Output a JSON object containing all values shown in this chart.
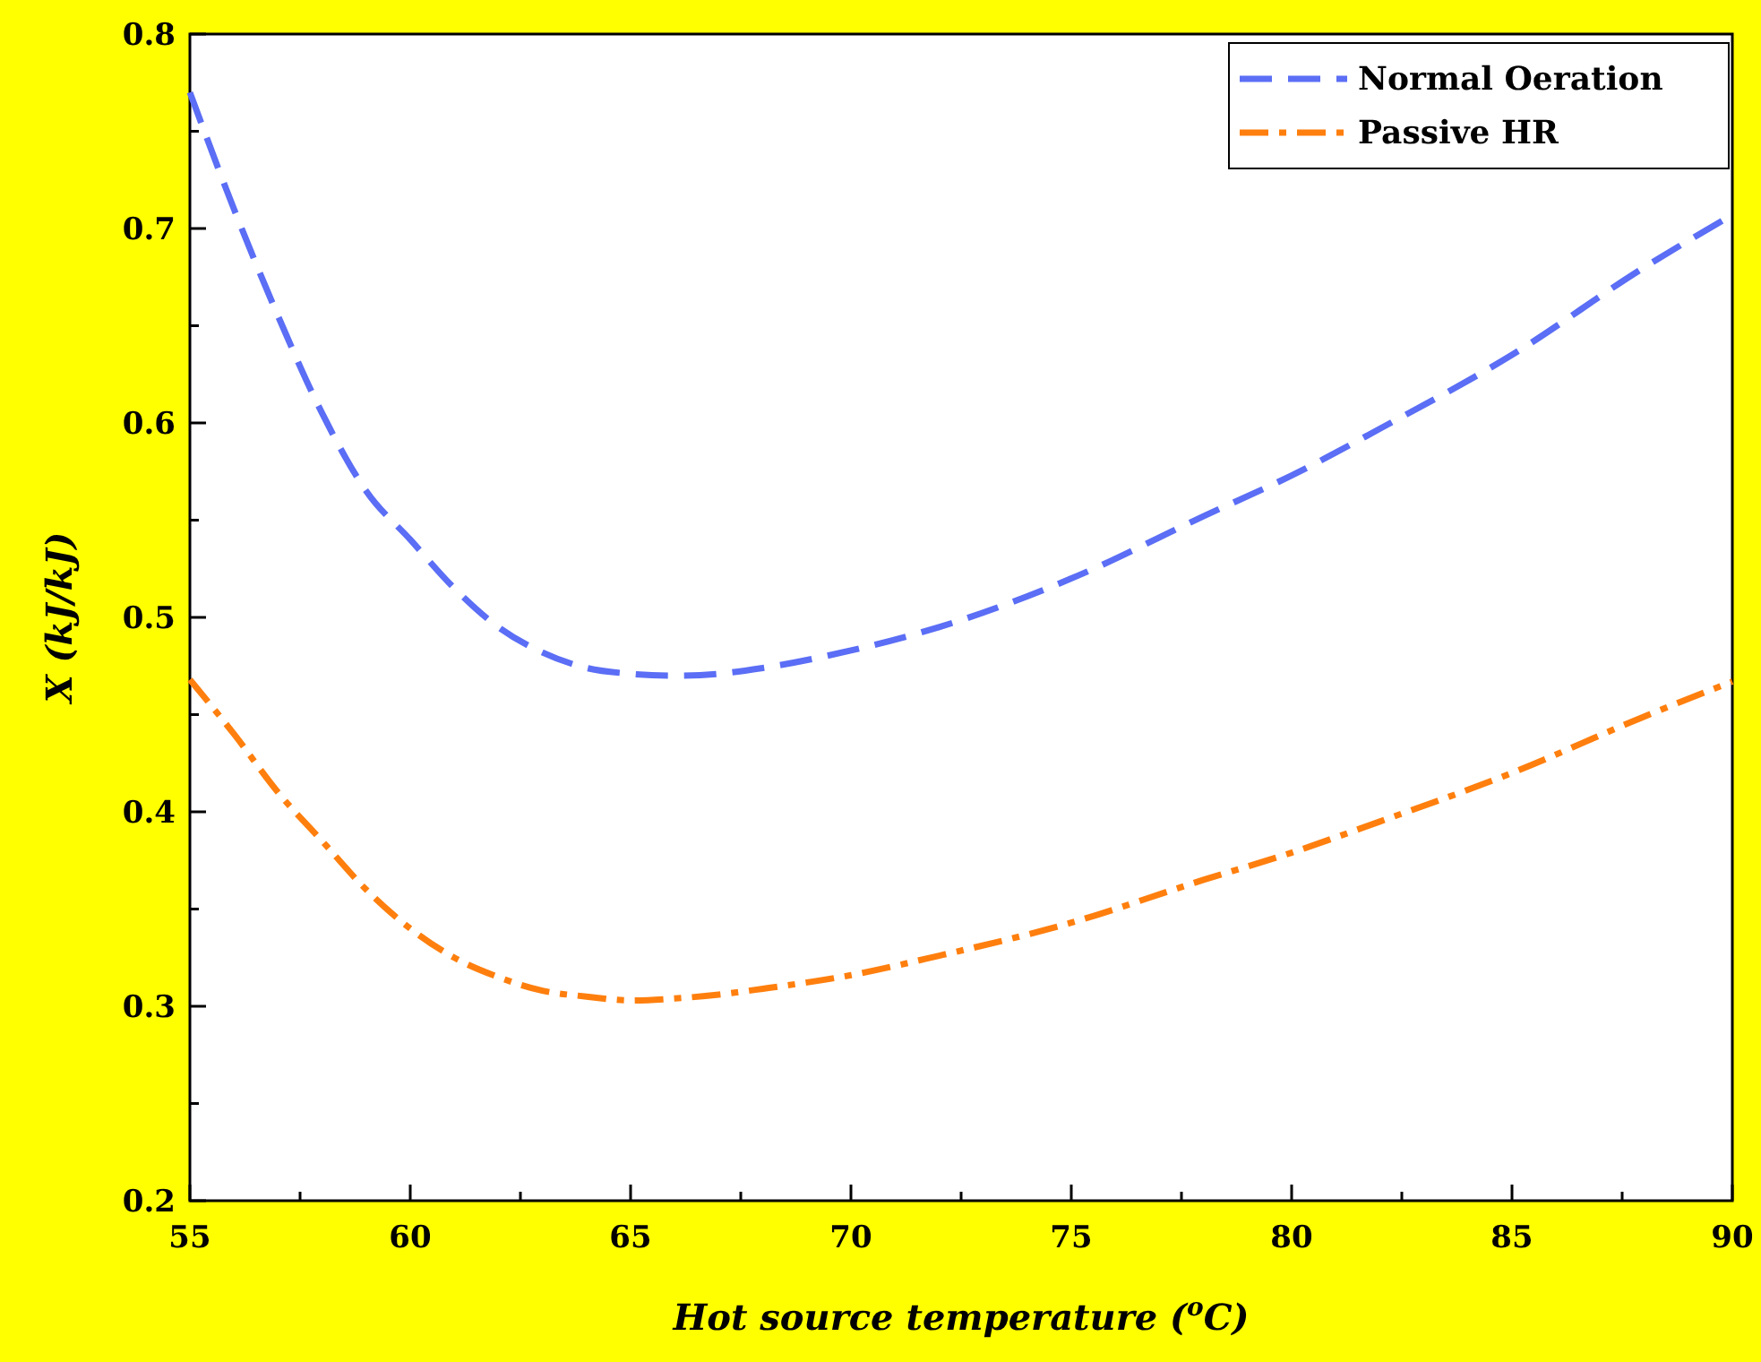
{
  "chart_data": {
    "type": "line",
    "xlabel": "Hot source temperature ($^{o}$C)",
    "ylabel": "X (kJ/kJ)",
    "x": [
      55,
      56,
      57,
      58,
      59,
      60,
      61,
      62,
      63,
      64,
      65,
      66,
      67,
      68,
      70,
      72,
      75,
      78,
      80,
      82,
      85,
      88,
      90
    ],
    "series": [
      {
        "name": "Normal Oeration",
        "color": "#5b6ef5",
        "line_style": "dashed",
        "values": [
          0.77,
          0.71,
          0.655,
          0.605,
          0.565,
          0.54,
          0.515,
          0.495,
          0.482,
          0.474,
          0.471,
          0.47,
          0.471,
          0.474,
          0.483,
          0.495,
          0.52,
          0.552,
          0.573,
          0.597,
          0.635,
          0.68,
          0.707
        ]
      },
      {
        "name": "Passive HR",
        "color": "#ff7f0e",
        "line_style": "dashdot",
        "values": [
          0.468,
          0.44,
          0.41,
          0.385,
          0.36,
          0.34,
          0.325,
          0.315,
          0.308,
          0.305,
          0.303,
          0.304,
          0.306,
          0.309,
          0.316,
          0.326,
          0.343,
          0.365,
          0.379,
          0.395,
          0.42,
          0.449,
          0.467
        ]
      }
    ],
    "xlim": [
      55,
      90
    ],
    "xticks": [
      55,
      {
        "value": 57.5,
        "label": null
      },
      60,
      {
        "value": 62.5,
        "label": null
      },
      65,
      {
        "value": 67.5,
        "label": null
      },
      70,
      {
        "value": 72.5,
        "label": null
      },
      75,
      {
        "value": 77.5,
        "label": null
      },
      80,
      {
        "value": 82.5,
        "label": null
      },
      85,
      {
        "value": 87.5,
        "label": null
      },
      90
    ],
    "ylim": [
      0.2,
      0.8
    ],
    "yticks": [
      {
        "value": 0.2,
        "label": "0.2"
      },
      {
        "value": 0.25,
        "label": null
      },
      {
        "value": 0.3,
        "label": "0.3"
      },
      {
        "value": 0.35,
        "label": null
      },
      {
        "value": 0.4,
        "label": "0.4"
      },
      {
        "value": 0.45,
        "label": null
      },
      {
        "value": 0.5,
        "label": "0.5"
      },
      {
        "value": 0.55,
        "label": null
      },
      {
        "value": 0.6,
        "label": "0.6"
      },
      {
        "value": 0.65,
        "label": null
      },
      {
        "value": 0.7,
        "label": "0.7"
      },
      {
        "value": 0.75,
        "label": null
      },
      {
        "value": 0.8,
        "label": "0.8"
      }
    ],
    "grid": false,
    "legend": "top right"
  }
}
